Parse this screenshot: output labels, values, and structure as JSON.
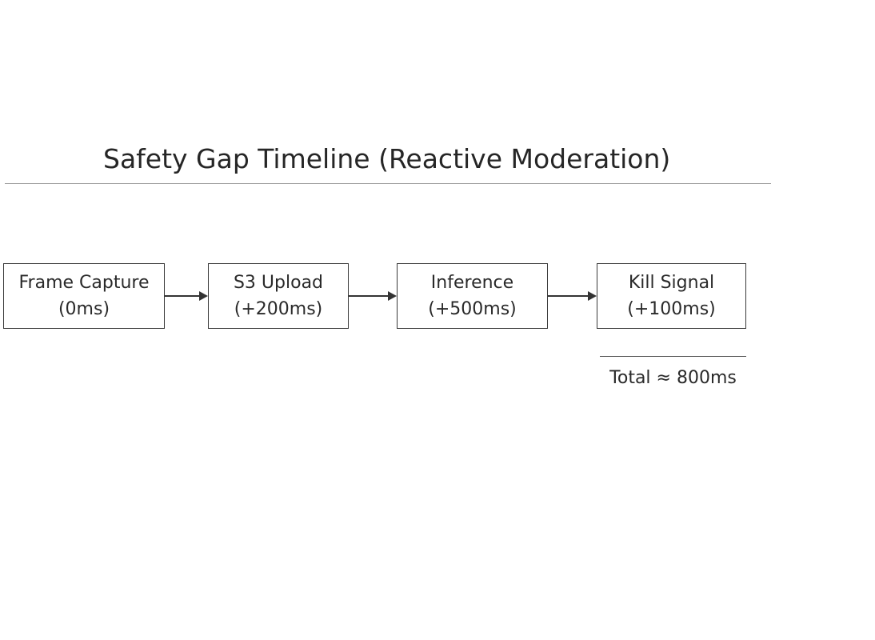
{
  "title": "Safety Gap Timeline (Reactive Moderation)",
  "steps": [
    {
      "name": "Frame Capture",
      "time": "(0ms)"
    },
    {
      "name": "S3 Upload",
      "time": "(+200ms)"
    },
    {
      "name": "Inference",
      "time": "(+500ms)"
    },
    {
      "name": "Kill Signal",
      "time": "(+100ms)"
    }
  ],
  "total": "Total ≈ 800ms",
  "colors": {
    "stroke": "#3a3a3a",
    "text": "#2a2a2a",
    "rule": "#9a9a9a"
  }
}
